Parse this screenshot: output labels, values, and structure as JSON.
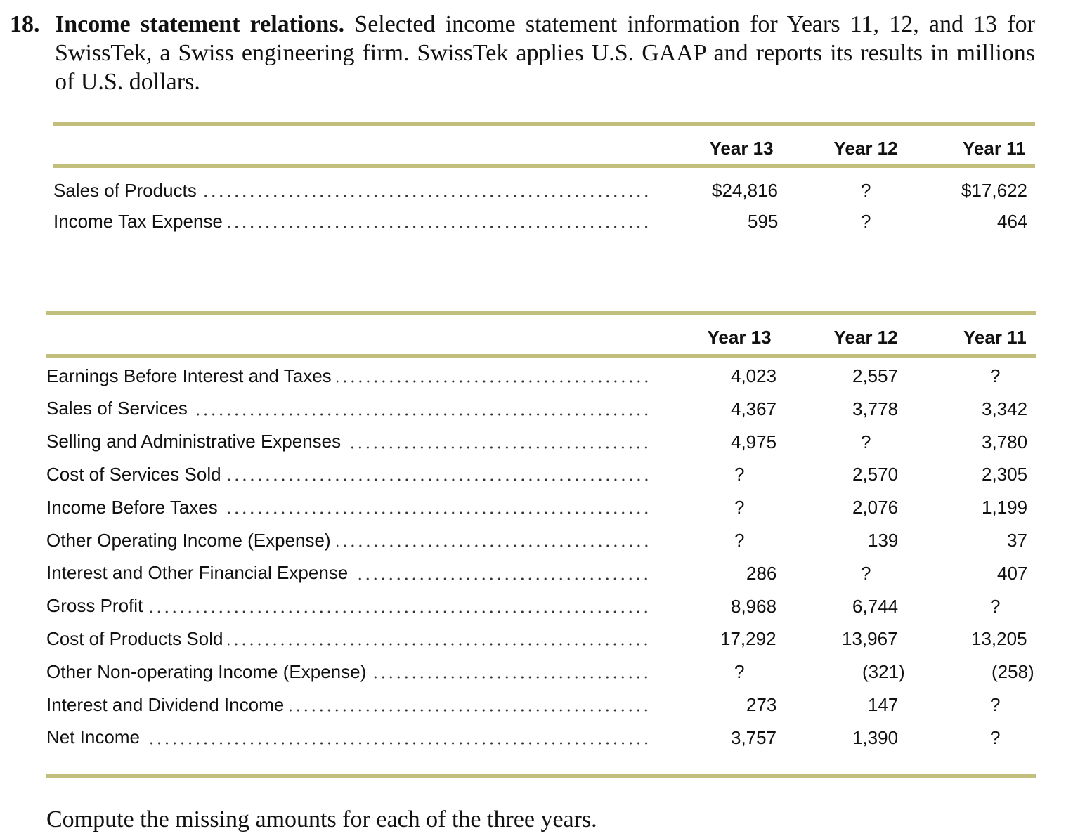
{
  "problem": {
    "number": "18.",
    "title": "Income statement relations.",
    "text": "Selected income statement information for Years 11, 12, and 13 for SwissTek, a Swiss engineering firm. SwissTek applies U.S. GAAP and reports its results in millions of U.S. dollars."
  },
  "table1": {
    "columns": [
      "Year 13",
      "Year 12",
      "Year 11"
    ],
    "rows": [
      {
        "label": "Sales of Products",
        "values": [
          "$24,816",
          "?",
          "$17,622"
        ]
      },
      {
        "label": "Income Tax Expense",
        "values": [
          "595",
          "?",
          "464"
        ]
      }
    ]
  },
  "table2": {
    "columns": [
      "Year 13",
      "Year 12",
      "Year 11"
    ],
    "rows": [
      {
        "label": "Earnings Before Interest and Taxes",
        "values": [
          "4,023",
          "2,557",
          "?"
        ]
      },
      {
        "label": "Sales of Services",
        "values": [
          "4,367",
          "3,778",
          "3,342"
        ]
      },
      {
        "label": "Selling and Administrative Expenses",
        "values": [
          "4,975",
          "?",
          "3,780"
        ]
      },
      {
        "label": "Cost of Services Sold",
        "values": [
          "?",
          "2,570",
          "2,305"
        ]
      },
      {
        "label": "Income Before Taxes",
        "values": [
          "?",
          "2,076",
          "1,199"
        ]
      },
      {
        "label": "Other Operating Income (Expense)",
        "values": [
          "?",
          "139",
          "37"
        ]
      },
      {
        "label": "Interest and Other Financial Expense",
        "values": [
          "286",
          "?",
          "407"
        ]
      },
      {
        "label": "Gross Profit",
        "values": [
          "8,968",
          "6,744",
          "?"
        ]
      },
      {
        "label": "Cost of Products Sold",
        "values": [
          "17,292",
          "13,967",
          "13,205"
        ]
      },
      {
        "label": "Other Non-operating Income (Expense)",
        "values": [
          "?",
          "(321)",
          "(258)"
        ]
      },
      {
        "label": "Interest and Dividend Income",
        "values": [
          "273",
          "147",
          "?"
        ]
      },
      {
        "label": "Net Income",
        "values": [
          "3,757",
          "1,390",
          "?"
        ]
      }
    ]
  },
  "instruction": "Compute the missing amounts for each of the three years."
}
